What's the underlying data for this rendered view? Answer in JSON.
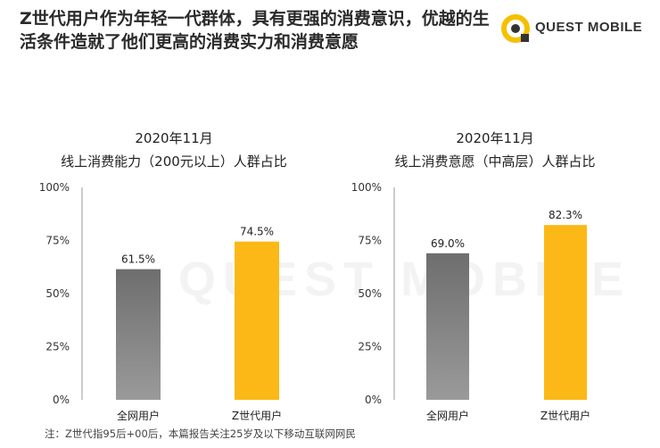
{
  "header": {
    "title_line1": "Z世代用户作为年轻一代群体，具有更强的消费意识，优越的生",
    "title_line2": "活条件造就了他们更高的消费实力和消费意愿"
  },
  "logo": {
    "text": "QUEST MOBILE",
    "accent": "#f5c000"
  },
  "watermark": "QUEST MOBILE",
  "colors": {
    "gray_bar": "#808080",
    "yellow_bar": "#fbb817",
    "axis": "#999999"
  },
  "chart_data": [
    {
      "type": "bar",
      "title": "2020年11月",
      "subtitle": "线上消费能力（200元以上）人群占比",
      "categories": [
        "全网用户",
        "Z世代用户"
      ],
      "values": [
        61.5,
        74.5
      ],
      "data_labels": [
        "61.5%",
        "74.5%"
      ],
      "ylim": [
        0,
        100
      ],
      "yticks": [
        "0%",
        "25%",
        "50%",
        "75%",
        "100%"
      ],
      "xlabel": "",
      "ylabel": "",
      "grid": false,
      "legend": "none"
    },
    {
      "type": "bar",
      "title": "2020年11月",
      "subtitle": "线上消费意愿（中高层）人群占比",
      "categories": [
        "全网用户",
        "Z世代用户"
      ],
      "values": [
        69.0,
        82.3
      ],
      "data_labels": [
        "69.0%",
        "82.3%"
      ],
      "ylim": [
        0,
        100
      ],
      "yticks": [
        "0%",
        "25%",
        "50%",
        "75%",
        "100%"
      ],
      "xlabel": "",
      "ylabel": "",
      "grid": false,
      "legend": "none"
    }
  ],
  "footnote": "注：Z世代指95后+00后，本篇报告关注25岁及以下移动互联网网民"
}
